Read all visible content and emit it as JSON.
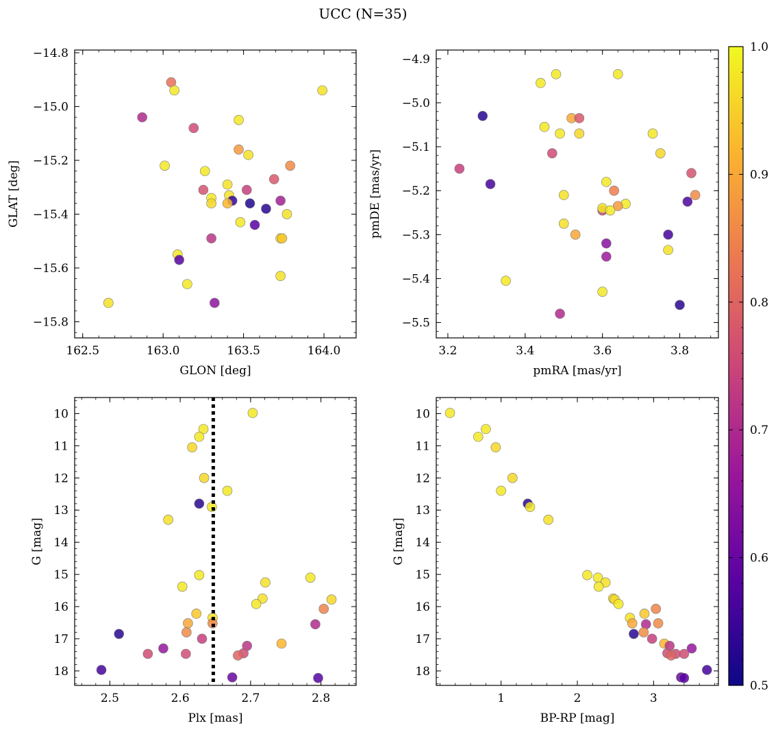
{
  "figure": {
    "title": "UCC (N=35)"
  },
  "colormap": {
    "name": "plasma",
    "stops": [
      "#0d0887",
      "#5b02a3",
      "#9a179b",
      "#cb4678",
      "#eb7852",
      "#fbb32f",
      "#f0f921"
    ],
    "range": [
      0.5,
      1.0
    ],
    "ticks": [
      "0.5",
      "0.6",
      "0.7",
      "0.8",
      "0.9",
      "1.0"
    ]
  },
  "chart_data": [
    {
      "type": "scatter",
      "xlabel": "GLON [deg]",
      "ylabel": "GLAT [deg]",
      "xlim": [
        162.45,
        164.2
      ],
      "ylim": [
        -15.86,
        -14.79
      ],
      "xticks": [
        162.5,
        163.0,
        163.5,
        164.0
      ],
      "xtick_labels": [
        "162.5",
        "163.0",
        "163.5",
        "164.0"
      ],
      "yticks": [
        -15.8,
        -15.6,
        -15.4,
        -15.2,
        -15.0,
        -14.8
      ],
      "ytick_labels": [
        "−15.8",
        "−15.6",
        "−15.4",
        "−15.2",
        "−15.0",
        "−14.8"
      ],
      "points": [
        {
          "x": 163.05,
          "y": -14.91,
          "c": 0.82
        },
        {
          "x": 163.07,
          "y": -14.94,
          "c": 0.98
        },
        {
          "x": 163.99,
          "y": -14.94,
          "c": 0.97
        },
        {
          "x": 162.87,
          "y": -15.04,
          "c": 0.7
        },
        {
          "x": 163.19,
          "y": -15.08,
          "c": 0.76
        },
        {
          "x": 163.47,
          "y": -15.05,
          "c": 0.98
        },
        {
          "x": 163.47,
          "y": -15.16,
          "c": 0.88
        },
        {
          "x": 163.53,
          "y": -15.18,
          "c": 0.97
        },
        {
          "x": 163.79,
          "y": -15.22,
          "c": 0.86
        },
        {
          "x": 163.01,
          "y": -15.22,
          "c": 0.98
        },
        {
          "x": 163.26,
          "y": -15.24,
          "c": 0.98
        },
        {
          "x": 163.69,
          "y": -15.27,
          "c": 0.78
        },
        {
          "x": 163.25,
          "y": -15.31,
          "c": 0.77
        },
        {
          "x": 163.52,
          "y": -15.31,
          "c": 0.74
        },
        {
          "x": 163.4,
          "y": -15.29,
          "c": 0.97
        },
        {
          "x": 163.3,
          "y": -15.34,
          "c": 0.98
        },
        {
          "x": 163.3,
          "y": -15.36,
          "c": 0.96
        },
        {
          "x": 163.41,
          "y": -15.33,
          "c": 0.97
        },
        {
          "x": 163.43,
          "y": -15.35,
          "c": 0.54
        },
        {
          "x": 163.4,
          "y": -15.36,
          "c": 0.92
        },
        {
          "x": 163.54,
          "y": -15.36,
          "c": 0.52
        },
        {
          "x": 163.64,
          "y": -15.38,
          "c": 0.53
        },
        {
          "x": 163.73,
          "y": -15.35,
          "c": 0.68
        },
        {
          "x": 163.77,
          "y": -15.4,
          "c": 0.97
        },
        {
          "x": 163.48,
          "y": -15.43,
          "c": 0.98
        },
        {
          "x": 163.57,
          "y": -15.44,
          "c": 0.58
        },
        {
          "x": 163.3,
          "y": -15.49,
          "c": 0.72
        },
        {
          "x": 163.73,
          "y": -15.49,
          "c": 0.96
        },
        {
          "x": 163.74,
          "y": -15.49,
          "c": 0.94
        },
        {
          "x": 163.09,
          "y": -15.55,
          "c": 0.98
        },
        {
          "x": 163.1,
          "y": -15.57,
          "c": 0.58
        },
        {
          "x": 163.73,
          "y": -15.63,
          "c": 0.97
        },
        {
          "x": 163.15,
          "y": -15.66,
          "c": 0.98
        },
        {
          "x": 162.66,
          "y": -15.73,
          "c": 0.97
        },
        {
          "x": 163.32,
          "y": -15.73,
          "c": 0.65
        }
      ]
    },
    {
      "type": "scatter",
      "xlabel": "pmRA [mas/yr]",
      "ylabel": "pmDE [mas/yr]",
      "xlim": [
        3.17,
        3.9
      ],
      "ylim": [
        -5.535,
        -4.88
      ],
      "xticks": [
        3.2,
        3.4,
        3.6,
        3.8
      ],
      "xtick_labels": [
        "3.2",
        "3.4",
        "3.6",
        "3.8"
      ],
      "yticks": [
        -5.5,
        -5.4,
        -5.3,
        -5.2,
        -5.1,
        -5.0,
        -4.9
      ],
      "ytick_labels": [
        "−5.5",
        "−5.4",
        "−5.3",
        "−5.2",
        "−5.1",
        "−5.0",
        "−4.9"
      ],
      "points": [
        {
          "x": 3.48,
          "y": -4.935,
          "c": 0.98
        },
        {
          "x": 3.64,
          "y": -4.935,
          "c": 0.98
        },
        {
          "x": 3.44,
          "y": -4.955,
          "c": 0.98
        },
        {
          "x": 3.29,
          "y": -5.03,
          "c": 0.53
        },
        {
          "x": 3.52,
          "y": -5.035,
          "c": 0.9
        },
        {
          "x": 3.54,
          "y": -5.035,
          "c": 0.78
        },
        {
          "x": 3.45,
          "y": -5.055,
          "c": 0.98
        },
        {
          "x": 3.49,
          "y": -5.07,
          "c": 0.98
        },
        {
          "x": 3.54,
          "y": -5.07,
          "c": 0.96
        },
        {
          "x": 3.73,
          "y": -5.07,
          "c": 0.98
        },
        {
          "x": 3.47,
          "y": -5.115,
          "c": 0.76
        },
        {
          "x": 3.75,
          "y": -5.115,
          "c": 0.96
        },
        {
          "x": 3.23,
          "y": -5.15,
          "c": 0.74
        },
        {
          "x": 3.83,
          "y": -5.16,
          "c": 0.77
        },
        {
          "x": 3.61,
          "y": -5.18,
          "c": 0.98
        },
        {
          "x": 3.31,
          "y": -5.185,
          "c": 0.56
        },
        {
          "x": 3.63,
          "y": -5.2,
          "c": 0.84
        },
        {
          "x": 3.84,
          "y": -5.21,
          "c": 0.86
        },
        {
          "x": 3.5,
          "y": -5.21,
          "c": 0.97
        },
        {
          "x": 3.82,
          "y": -5.225,
          "c": 0.57
        },
        {
          "x": 3.66,
          "y": -5.23,
          "c": 0.98
        },
        {
          "x": 3.64,
          "y": -5.235,
          "c": 0.88
        },
        {
          "x": 3.6,
          "y": -5.245,
          "c": 0.74
        },
        {
          "x": 3.6,
          "y": -5.24,
          "c": 0.98
        },
        {
          "x": 3.62,
          "y": -5.245,
          "c": 0.98
        },
        {
          "x": 3.5,
          "y": -5.275,
          "c": 0.97
        },
        {
          "x": 3.53,
          "y": -5.3,
          "c": 0.9
        },
        {
          "x": 3.77,
          "y": -5.3,
          "c": 0.56
        },
        {
          "x": 3.61,
          "y": -5.32,
          "c": 0.64
        },
        {
          "x": 3.77,
          "y": -5.335,
          "c": 0.97
        },
        {
          "x": 3.61,
          "y": -5.35,
          "c": 0.67
        },
        {
          "x": 3.35,
          "y": -5.405,
          "c": 0.98
        },
        {
          "x": 3.6,
          "y": -5.43,
          "c": 0.98
        },
        {
          "x": 3.8,
          "y": -5.46,
          "c": 0.53
        },
        {
          "x": 3.49,
          "y": -5.48,
          "c": 0.7
        }
      ]
    },
    {
      "type": "scatter",
      "xlabel": "Plx [mas]",
      "ylabel": "G [mag]",
      "xlim": [
        2.45,
        2.85
      ],
      "ylim": [
        18.45,
        9.5
      ],
      "y_inverted": true,
      "xticks": [
        2.5,
        2.6,
        2.7,
        2.8
      ],
      "xtick_labels": [
        "2.5",
        "2.6",
        "2.7",
        "2.8"
      ],
      "yticks": [
        10,
        11,
        12,
        13,
        14,
        15,
        16,
        17,
        18
      ],
      "ytick_labels": [
        "10",
        "11",
        "12",
        "13",
        "14",
        "15",
        "16",
        "17",
        "18"
      ],
      "vline": {
        "x": 2.647,
        "style": "dotted"
      },
      "points": [
        {
          "x": 2.703,
          "y": 9.98,
          "c": 0.98
        },
        {
          "x": 2.633,
          "y": 10.48,
          "c": 0.98
        },
        {
          "x": 2.627,
          "y": 10.72,
          "c": 0.98
        },
        {
          "x": 2.617,
          "y": 11.05,
          "c": 0.96
        },
        {
          "x": 2.634,
          "y": 12.0,
          "c": 0.96
        },
        {
          "x": 2.667,
          "y": 12.4,
          "c": 0.98
        },
        {
          "x": 2.627,
          "y": 12.8,
          "c": 0.53
        },
        {
          "x": 2.645,
          "y": 12.9,
          "c": 0.98
        },
        {
          "x": 2.583,
          "y": 13.3,
          "c": 0.97
        },
        {
          "x": 2.627,
          "y": 15.02,
          "c": 0.98
        },
        {
          "x": 2.785,
          "y": 15.1,
          "c": 0.98
        },
        {
          "x": 2.721,
          "y": 15.25,
          "c": 0.97
        },
        {
          "x": 2.603,
          "y": 15.38,
          "c": 0.98
        },
        {
          "x": 2.717,
          "y": 15.75,
          "c": 0.97
        },
        {
          "x": 2.815,
          "y": 15.78,
          "c": 0.96
        },
        {
          "x": 2.708,
          "y": 15.92,
          "c": 0.98
        },
        {
          "x": 2.804,
          "y": 16.07,
          "c": 0.85
        },
        {
          "x": 2.623,
          "y": 16.22,
          "c": 0.94
        },
        {
          "x": 2.646,
          "y": 16.35,
          "c": 0.97
        },
        {
          "x": 2.646,
          "y": 16.52,
          "c": 0.86
        },
        {
          "x": 2.611,
          "y": 16.52,
          "c": 0.9
        },
        {
          "x": 2.792,
          "y": 16.55,
          "c": 0.7
        },
        {
          "x": 2.609,
          "y": 16.8,
          "c": 0.86
        },
        {
          "x": 2.513,
          "y": 16.85,
          "c": 0.53
        },
        {
          "x": 2.631,
          "y": 17.0,
          "c": 0.74
        },
        {
          "x": 2.744,
          "y": 17.15,
          "c": 0.92
        },
        {
          "x": 2.695,
          "y": 17.22,
          "c": 0.72
        },
        {
          "x": 2.576,
          "y": 17.3,
          "c": 0.66
        },
        {
          "x": 2.554,
          "y": 17.47,
          "c": 0.76
        },
        {
          "x": 2.608,
          "y": 17.47,
          "c": 0.76
        },
        {
          "x": 2.69,
          "y": 17.45,
          "c": 0.76
        },
        {
          "x": 2.682,
          "y": 17.52,
          "c": 0.8
        },
        {
          "x": 2.488,
          "y": 17.97,
          "c": 0.56
        },
        {
          "x": 2.674,
          "y": 18.2,
          "c": 0.6
        },
        {
          "x": 2.796,
          "y": 18.22,
          "c": 0.58
        }
      ]
    },
    {
      "type": "scatter",
      "xlabel": "BP-RP [mag]",
      "ylabel": "G [mag]",
      "xlim": [
        0.15,
        3.85
      ],
      "ylim": [
        18.45,
        9.5
      ],
      "y_inverted": true,
      "xticks": [
        1,
        2,
        3
      ],
      "xtick_labels": [
        "1",
        "2",
        "3"
      ],
      "yticks": [
        10,
        11,
        12,
        13,
        14,
        15,
        16,
        17,
        18
      ],
      "ytick_labels": [
        "10",
        "11",
        "12",
        "13",
        "14",
        "15",
        "16",
        "17",
        "18"
      ],
      "points": [
        {
          "x": 0.33,
          "y": 9.98,
          "c": 0.98
        },
        {
          "x": 0.8,
          "y": 10.48,
          "c": 0.98
        },
        {
          "x": 0.7,
          "y": 10.72,
          "c": 0.98
        },
        {
          "x": 0.93,
          "y": 11.05,
          "c": 0.96
        },
        {
          "x": 1.15,
          "y": 12.0,
          "c": 0.96
        },
        {
          "x": 1.0,
          "y": 12.4,
          "c": 0.98
        },
        {
          "x": 1.35,
          "y": 12.8,
          "c": 0.53
        },
        {
          "x": 1.38,
          "y": 12.9,
          "c": 0.98
        },
        {
          "x": 1.62,
          "y": 13.3,
          "c": 0.97
        },
        {
          "x": 2.13,
          "y": 15.02,
          "c": 0.98
        },
        {
          "x": 2.27,
          "y": 15.1,
          "c": 0.98
        },
        {
          "x": 2.37,
          "y": 15.25,
          "c": 0.97
        },
        {
          "x": 2.28,
          "y": 15.38,
          "c": 0.98
        },
        {
          "x": 2.47,
          "y": 15.75,
          "c": 0.97
        },
        {
          "x": 2.49,
          "y": 15.78,
          "c": 0.96
        },
        {
          "x": 2.54,
          "y": 15.92,
          "c": 0.98
        },
        {
          "x": 3.03,
          "y": 16.07,
          "c": 0.85
        },
        {
          "x": 2.88,
          "y": 16.22,
          "c": 0.94
        },
        {
          "x": 2.69,
          "y": 16.35,
          "c": 0.97
        },
        {
          "x": 3.06,
          "y": 16.52,
          "c": 0.86
        },
        {
          "x": 2.72,
          "y": 16.52,
          "c": 0.9
        },
        {
          "x": 2.9,
          "y": 16.55,
          "c": 0.7
        },
        {
          "x": 2.87,
          "y": 16.8,
          "c": 0.86
        },
        {
          "x": 2.74,
          "y": 16.85,
          "c": 0.53
        },
        {
          "x": 2.98,
          "y": 17.0,
          "c": 0.74
        },
        {
          "x": 3.14,
          "y": 17.15,
          "c": 0.92
        },
        {
          "x": 3.21,
          "y": 17.22,
          "c": 0.72
        },
        {
          "x": 3.5,
          "y": 17.3,
          "c": 0.66
        },
        {
          "x": 3.4,
          "y": 17.47,
          "c": 0.76
        },
        {
          "x": 3.29,
          "y": 17.47,
          "c": 0.76
        },
        {
          "x": 3.18,
          "y": 17.45,
          "c": 0.76
        },
        {
          "x": 3.23,
          "y": 17.52,
          "c": 0.8
        },
        {
          "x": 3.7,
          "y": 17.97,
          "c": 0.56
        },
        {
          "x": 3.36,
          "y": 18.2,
          "c": 0.6
        },
        {
          "x": 3.4,
          "y": 18.22,
          "c": 0.58
        }
      ]
    }
  ]
}
